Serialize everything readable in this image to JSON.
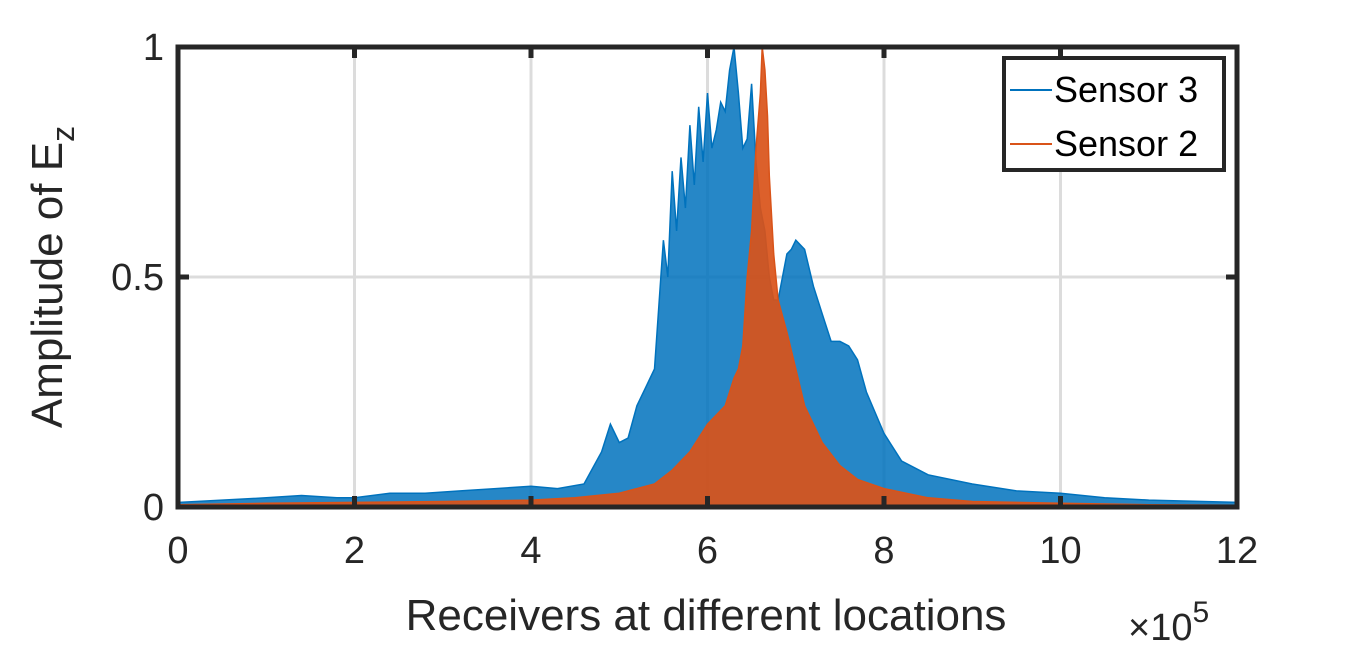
{
  "chart_data": {
    "type": "area",
    "xlabel": "Receivers at different locations",
    "ylabel": "Amplitude of E",
    "ylabel_subscript": "z",
    "x_exponent_label": "×10",
    "x_exponent_power": "5",
    "xlim": [
      0,
      12
    ],
    "ylim": [
      0,
      1
    ],
    "x_ticks": [
      0,
      2,
      4,
      6,
      8,
      10,
      12
    ],
    "x_tick_labels": [
      "0",
      "2",
      "4",
      "6",
      "8",
      "10",
      "12"
    ],
    "y_ticks": [
      0,
      0.5,
      1
    ],
    "y_tick_labels": [
      "0",
      "0.5",
      "1"
    ],
    "grid": true,
    "legend_position": "top-right",
    "series": [
      {
        "name": "Sensor 3",
        "color": "#0072BD",
        "x": [
          0,
          0.5,
          1,
          1.4,
          1.8,
          2,
          2.4,
          2.8,
          3.2,
          3.6,
          4,
          4.3,
          4.6,
          4.8,
          4.9,
          5.0,
          5.1,
          5.2,
          5.3,
          5.4,
          5.5,
          5.55,
          5.6,
          5.65,
          5.7,
          5.75,
          5.8,
          5.85,
          5.9,
          5.95,
          6.0,
          6.05,
          6.1,
          6.15,
          6.2,
          6.25,
          6.3,
          6.35,
          6.4,
          6.45,
          6.5,
          6.55,
          6.6,
          6.65,
          6.7,
          6.75,
          6.8,
          6.85,
          6.9,
          6.95,
          7.0,
          7.05,
          7.1,
          7.2,
          7.3,
          7.4,
          7.5,
          7.6,
          7.7,
          7.8,
          8.0,
          8.2,
          8.5,
          9.0,
          9.5,
          10,
          10.5,
          11,
          12
        ],
        "y": [
          0.01,
          0.015,
          0.02,
          0.025,
          0.02,
          0.02,
          0.03,
          0.03,
          0.035,
          0.04,
          0.045,
          0.04,
          0.05,
          0.12,
          0.18,
          0.14,
          0.15,
          0.22,
          0.26,
          0.3,
          0.58,
          0.5,
          0.73,
          0.6,
          0.76,
          0.65,
          0.83,
          0.7,
          0.87,
          0.75,
          0.9,
          0.78,
          0.82,
          0.88,
          0.86,
          0.95,
          1.0,
          0.9,
          0.78,
          0.8,
          0.92,
          0.75,
          0.65,
          0.6,
          0.5,
          0.45,
          0.45,
          0.5,
          0.55,
          0.56,
          0.58,
          0.57,
          0.56,
          0.48,
          0.42,
          0.36,
          0.36,
          0.35,
          0.32,
          0.25,
          0.16,
          0.1,
          0.07,
          0.05,
          0.035,
          0.03,
          0.02,
          0.015,
          0.01
        ]
      },
      {
        "name": "Sensor 2",
        "color": "#D95319",
        "x": [
          0,
          1,
          2,
          3,
          4,
          4.5,
          5,
          5.2,
          5.4,
          5.6,
          5.8,
          6.0,
          6.1,
          6.2,
          6.3,
          6.35,
          6.4,
          6.45,
          6.5,
          6.55,
          6.6,
          6.62,
          6.65,
          6.68,
          6.7,
          6.75,
          6.8,
          6.9,
          7.0,
          7.1,
          7.2,
          7.3,
          7.5,
          7.7,
          8.0,
          8.5,
          9,
          10,
          11,
          12
        ],
        "y": [
          0.005,
          0.008,
          0.01,
          0.012,
          0.015,
          0.02,
          0.03,
          0.04,
          0.05,
          0.08,
          0.12,
          0.18,
          0.2,
          0.22,
          0.28,
          0.3,
          0.35,
          0.5,
          0.6,
          0.78,
          0.9,
          1.0,
          0.95,
          0.85,
          0.72,
          0.55,
          0.45,
          0.38,
          0.3,
          0.22,
          0.18,
          0.14,
          0.09,
          0.06,
          0.04,
          0.02,
          0.012,
          0.008,
          0.005,
          0.004
        ]
      }
    ]
  }
}
